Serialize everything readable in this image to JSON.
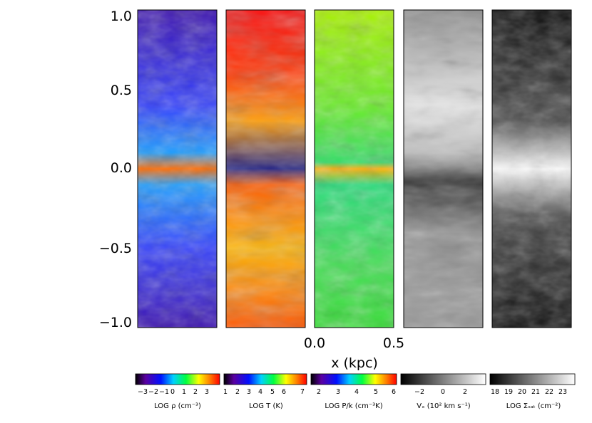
{
  "figure": {
    "y_axis": {
      "ticks": [
        "1.0",
        "0.5",
        "0.0",
        "−0.5",
        "−1.0"
      ]
    },
    "x_axis": {
      "ticks": [
        "0.0",
        "0.5"
      ],
      "label": "x (kpc)"
    },
    "panels": [
      {
        "quantity": "density",
        "colormap": "rainbow"
      },
      {
        "quantity": "temperature",
        "colormap": "rainbow"
      },
      {
        "quantity": "pressure",
        "colormap": "rainbow"
      },
      {
        "quantity": "vertical-velocity",
        "colormap": "grayscale"
      },
      {
        "quantity": "surface-density",
        "colormap": "grayscale"
      }
    ],
    "colorbars": [
      {
        "ticks": [
          "−3",
          "−2",
          "−1",
          "0",
          "1",
          "2",
          "3"
        ],
        "label": "LOG ρ (cm⁻³)"
      },
      {
        "ticks": [
          "1",
          "2",
          "3",
          "4",
          "5",
          "6",
          "7"
        ],
        "label": "LOG T (K)"
      },
      {
        "ticks": [
          "2",
          "3",
          "4",
          "5",
          "6"
        ],
        "label": "LOG P/k (cm⁻³K)"
      },
      {
        "ticks": [
          "−2",
          "0",
          "2"
        ],
        "label": "Vₓ (10² km s⁻¹)"
      },
      {
        "ticks": [
          "18",
          "19",
          "20",
          "21",
          "22",
          "23"
        ],
        "label": "LOG Σₛₐₜ (cm⁻²)"
      }
    ]
  }
}
